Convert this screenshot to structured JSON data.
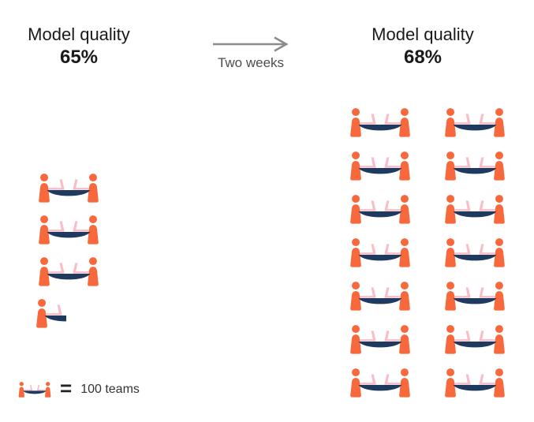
{
  "page": {
    "background": "#FFFFFF"
  },
  "colors": {
    "background": "#FFFFFF",
    "person": "#F7693C",
    "table": "#1E3A5E",
    "laptop": "#F9BDC7",
    "heading_text": "#1A1A1A",
    "transition_text": "#4D4D4D",
    "arrow": "#8C8C8C",
    "legend_text": "#333333",
    "equals": "#222222"
  },
  "icons": {
    "team": "team-at-table-icon",
    "team_half": "team-at-table-half-icon",
    "arrow": "right-arrow-icon"
  },
  "left_panel": {
    "title": "Model quality",
    "value": "65%",
    "full_icons": 3,
    "half_icons": 1
  },
  "transition": {
    "label": "Two weeks"
  },
  "right_panel": {
    "title": "Model quality",
    "value": "68%",
    "full_icons": 14,
    "half_icons": 0,
    "columns": 2
  },
  "legend": {
    "equals_sign": "=",
    "label": "100 teams",
    "icon": "team-at-table-icon"
  },
  "chart_data": {
    "type": "pictograph",
    "title": "",
    "unit": {
      "icon": "team-at-table-icon",
      "value": 100,
      "label": "teams"
    },
    "groups": [
      {
        "title": "Model quality",
        "value_label": "65%",
        "full_icons": 3,
        "half_icons": 1,
        "estimated_teams": 350
      },
      {
        "title": "Model quality",
        "value_label": "68%",
        "full_icons": 14,
        "half_icons": 0,
        "estimated_teams": 1400
      }
    ],
    "transition_label": "Two weeks",
    "legend": "1 icon = 100 teams",
    "layout": {
      "left_group_columns": 1,
      "right_group_columns": 2,
      "legend_position": "bottom-left"
    }
  }
}
